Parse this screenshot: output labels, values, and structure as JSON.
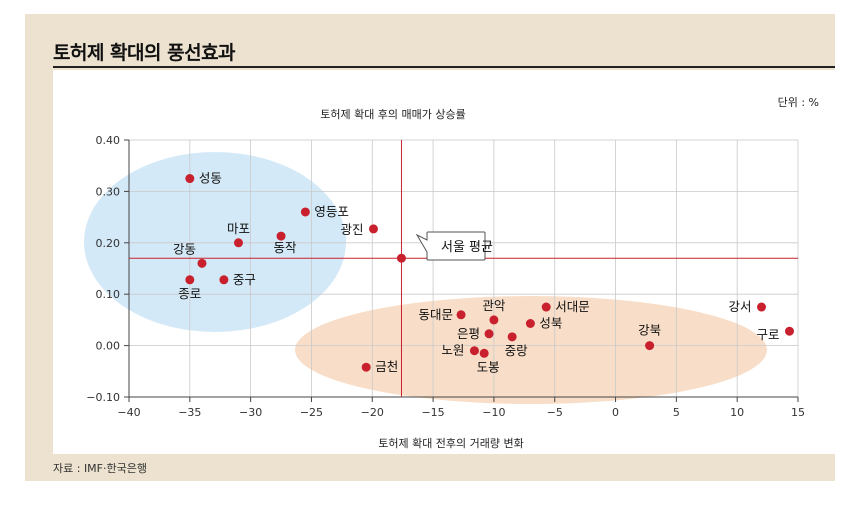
{
  "headline": "토허제 확대의 풍선효과",
  "source": "자료 : IMF·한국은행",
  "colors": {
    "card": "#ece2cf",
    "point": "#c8202d",
    "reference_line": "#c8202d",
    "cluster_left": "#d4e9f7",
    "cluster_right": "#f8dec8"
  },
  "chart_data": {
    "type": "scatter",
    "title": "토허제 확대 후의 매매가 상승률",
    "unit_note": "단위 : %",
    "xlabel": "토허제 확대 전후의 거래량 변화",
    "ylabel": "",
    "xlim": [
      -40,
      15
    ],
    "ylim": [
      -0.1,
      0.4
    ],
    "xticks": [
      "−40",
      "−35",
      "−30",
      "−25",
      "−20",
      "−15",
      "−10",
      "−5",
      "0",
      "5",
      "10",
      "15"
    ],
    "yticks": [
      "−0.10",
      "0.00",
      "0.10",
      "0.20",
      "0.30",
      "0.40"
    ],
    "grid": true,
    "reference": {
      "label": "서울 평균",
      "x": -17.6,
      "y": 0.17
    },
    "points": [
      {
        "label": "성동",
        "x": -35.0,
        "y": 0.325
      },
      {
        "label": "영등포",
        "x": -25.5,
        "y": 0.26
      },
      {
        "label": "광진",
        "x": -19.9,
        "y": 0.227
      },
      {
        "label": "마포",
        "x": -31.0,
        "y": 0.2
      },
      {
        "label": "동작",
        "x": -27.5,
        "y": 0.213
      },
      {
        "label": "강동",
        "x": -34.0,
        "y": 0.16
      },
      {
        "label": "종로",
        "x": -35.0,
        "y": 0.128
      },
      {
        "label": "중구",
        "x": -32.2,
        "y": 0.128
      },
      {
        "label": "금천",
        "x": -20.5,
        "y": -0.042
      },
      {
        "label": "동대문",
        "x": -12.7,
        "y": 0.06
      },
      {
        "label": "관악",
        "x": -10.0,
        "y": 0.05
      },
      {
        "label": "은평",
        "x": -10.4,
        "y": 0.023
      },
      {
        "label": "노원",
        "x": -11.6,
        "y": -0.01
      },
      {
        "label": "도봉",
        "x": -10.8,
        "y": -0.015
      },
      {
        "label": "중랑",
        "x": -8.5,
        "y": 0.017
      },
      {
        "label": "성북",
        "x": -7.0,
        "y": 0.043
      },
      {
        "label": "서대문",
        "x": -5.7,
        "y": 0.075
      },
      {
        "label": "강북",
        "x": 2.8,
        "y": 0.0
      },
      {
        "label": "강서",
        "x": 12.0,
        "y": 0.075
      },
      {
        "label": "구로",
        "x": 14.3,
        "y": 0.028
      }
    ]
  }
}
